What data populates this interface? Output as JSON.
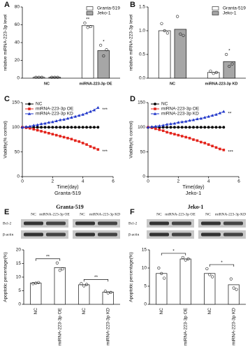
{
  "chart_data": [
    {
      "type": "bar",
      "panel": "A",
      "ylabel": "relative miRNA-223-3p level",
      "categories": [
        "NC",
        "miRNA-223-3p OE"
      ],
      "series": [
        {
          "name": "Granta-519",
          "color": "#ffffff",
          "values": [
            1,
            59
          ],
          "points": [
            [
              1,
              1,
              1
            ],
            [
              62,
              57,
              58
            ]
          ]
        },
        {
          "name": "Jeko-1",
          "color": "#a6a6a6",
          "values": [
            1,
            31
          ],
          "points": [
            [
              1,
              1,
              1
            ],
            [
              37,
              25,
              32
            ]
          ]
        }
      ],
      "ylim": [
        0,
        80
      ],
      "yticks": [
        0,
        20,
        40,
        60,
        80
      ],
      "legend": "upper right",
      "annotations": [
        {
          "text": "**",
          "series": 0,
          "index": 1
        },
        {
          "text": "*",
          "series": 1,
          "index": 1
        }
      ]
    },
    {
      "type": "bar",
      "panel": "B",
      "ylabel": "relative miRNA-223-3p level",
      "categories": [
        "NC",
        "miRNA-223-3p KD"
      ],
      "series": [
        {
          "name": "Granta-519",
          "color": "#ffffff",
          "values": [
            1.0,
            0.12
          ],
          "points": [
            [
              1.15,
              1.0,
              0.95
            ],
            [
              0.15,
              0.1,
              0.12
            ]
          ]
        },
        {
          "name": "Jeko-1",
          "color": "#a6a6a6",
          "values": [
            1.03,
            0.35
          ],
          "points": [
            [
              1.3,
              0.93,
              0.9
            ],
            [
              0.5,
              0.25,
              0.3
            ]
          ]
        }
      ],
      "ylim": [
        0,
        1.5
      ],
      "yticks": [
        {
          "value": 0,
          "label": "0.0"
        },
        {
          "value": 0.5,
          "label": "0.5"
        },
        {
          "value": 1,
          "label": "1.0"
        },
        {
          "value": 1.5,
          "label": "1.5"
        }
      ],
      "legend": "upper right",
      "annotations": [
        {
          "text": "*",
          "series": 1,
          "index": 1
        }
      ]
    },
    {
      "type": "line",
      "panel": "C",
      "ylabel": "Viability(% control)",
      "xlabel": "Time(day)",
      "subtitle": "Granta-519",
      "x": [
        0,
        0.25,
        0.5,
        0.75,
        1,
        1.25,
        1.5,
        1.75,
        2,
        2.25,
        2.5,
        2.75,
        3,
        3.25,
        3.5,
        3.75,
        4,
        4.25,
        4.5,
        4.75,
        5
      ],
      "series": [
        {
          "name": "NC",
          "color": "#000000",
          "marker": "circle",
          "values": [
            100,
            100,
            100,
            100,
            100,
            100,
            100,
            100,
            100,
            100,
            100,
            100,
            100,
            100,
            100,
            100,
            100,
            100,
            100,
            100,
            100
          ]
        },
        {
          "name": "miRNA-223-3p OE",
          "color": "#e3231b",
          "marker": "square",
          "values": [
            100,
            99,
            98,
            96,
            94,
            92,
            90,
            88,
            86,
            84,
            82,
            80,
            78,
            76,
            73,
            71,
            68,
            65,
            61,
            58,
            55
          ]
        },
        {
          "name": "miRNA-223-3p KD",
          "color": "#1f35c9",
          "marker": "triangle",
          "values": [
            100,
            101,
            102,
            104,
            105,
            107,
            108,
            110,
            111,
            113,
            115,
            116,
            118,
            120,
            122,
            124,
            126,
            129,
            132,
            135,
            140
          ]
        }
      ],
      "xlim": [
        0,
        6
      ],
      "xticks": [
        0,
        2,
        4,
        6
      ],
      "ylim": [
        0,
        150
      ],
      "yticks": [
        0,
        50,
        100,
        150
      ],
      "legend": "upper left",
      "annotations": [
        {
          "text": "***",
          "series": 2
        },
        {
          "text": "***",
          "series": 1
        }
      ]
    },
    {
      "type": "line",
      "panel": "D",
      "ylabel": "Viability(% control)",
      "xlabel": "Time(day)",
      "subtitle": "Jeko-1",
      "x": [
        0,
        0.25,
        0.5,
        0.75,
        1,
        1.25,
        1.5,
        1.75,
        2,
        2.25,
        2.5,
        2.75,
        3,
        3.25,
        3.5,
        3.75,
        4,
        4.25,
        4.5,
        4.75,
        5
      ],
      "series": [
        {
          "name": "NC",
          "color": "#000000",
          "marker": "circle",
          "values": [
            100,
            100,
            100,
            100,
            100,
            100,
            100,
            100,
            100,
            100,
            100,
            100,
            100,
            100,
            100,
            100,
            100,
            100,
            100,
            100,
            100
          ]
        },
        {
          "name": "miRNA-223-3p OE",
          "color": "#e3231b",
          "marker": "square",
          "values": [
            100,
            99,
            97,
            95,
            93,
            90,
            88,
            86,
            84,
            82,
            80,
            78,
            75,
            73,
            70,
            68,
            65,
            62,
            59,
            56,
            54
          ]
        },
        {
          "name": "miRNA-223-3p KD",
          "color": "#1f35c9",
          "marker": "triangle",
          "values": [
            100,
            101,
            102,
            103,
            104,
            106,
            107,
            108,
            110,
            111,
            112,
            114,
            115,
            117,
            118,
            120,
            122,
            124,
            126,
            129,
            132
          ]
        }
      ],
      "xlim": [
        0,
        6
      ],
      "xticks": [
        0,
        2,
        4,
        6
      ],
      "ylim": [
        0,
        150
      ],
      "yticks": [
        0,
        50,
        100,
        150
      ],
      "legend": "upper left",
      "annotations": [
        {
          "text": "**",
          "series": 2
        },
        {
          "text": "***",
          "series": 1
        }
      ]
    },
    {
      "type": "bar",
      "panel": "E",
      "title": "Granta-519",
      "ylabel": "Apoptotic percentage(%)",
      "blot": {
        "lanes": [
          "NC",
          "miRNA-223-3p OE",
          "NC",
          "miRNA-223-3p KD"
        ],
        "rows": [
          "Bcl-2",
          "β-actin"
        ]
      },
      "categories": [
        "NC",
        "miRNA-223-3p OE",
        "NC",
        "miRNA-223-3p KD"
      ],
      "x_tick_rotation": 90,
      "series": [
        {
          "color": "#ffffff",
          "values": [
            7.8,
            13.5,
            7.2,
            4.5
          ],
          "points": [
            [
              7.6,
              7.8,
              8.0
            ],
            [
              15.2,
              12.5,
              13.0
            ],
            [
              7.6,
              6.8,
              7.3
            ],
            [
              4.8,
              4.2,
              4.4
            ]
          ]
        }
      ],
      "ylim": [
        0,
        20
      ],
      "yticks": [
        0,
        5,
        10,
        15,
        20
      ],
      "brackets": [
        {
          "text": "**",
          "from": 0,
          "to": 1
        },
        {
          "text": "**",
          "from": 2,
          "to": 3
        }
      ]
    },
    {
      "type": "bar",
      "panel": "F",
      "title": "Jeko-1",
      "ylabel": "Apoptotic percentage(%)",
      "blot": {
        "lanes": [
          "NC",
          "miRNA-223-3p OE",
          "NC",
          "miRNA-223-3p KD"
        ],
        "rows": [
          "Bcl-2",
          "β-actin"
        ]
      },
      "categories": [
        "NC",
        "miRNA-223-3p OE",
        "NC",
        "miRNA-223-3p KD"
      ],
      "x_tick_rotation": 90,
      "series": [
        {
          "color": "#ffffff",
          "values": [
            8.5,
            12.5,
            8.5,
            5.4
          ],
          "points": [
            [
              10.0,
              8.5,
              7.2
            ],
            [
              12.9,
              12.2,
              12.5
            ],
            [
              9.8,
              8.2,
              7.6
            ],
            [
              7.0,
              4.5,
              4.1
            ]
          ]
        }
      ],
      "ylim": [
        0,
        15
      ],
      "yticks": [
        0,
        5,
        10,
        15
      ],
      "brackets": [
        {
          "text": "*",
          "from": 0,
          "to": 1
        },
        {
          "text": "*",
          "from": 2,
          "to": 3
        }
      ]
    }
  ]
}
